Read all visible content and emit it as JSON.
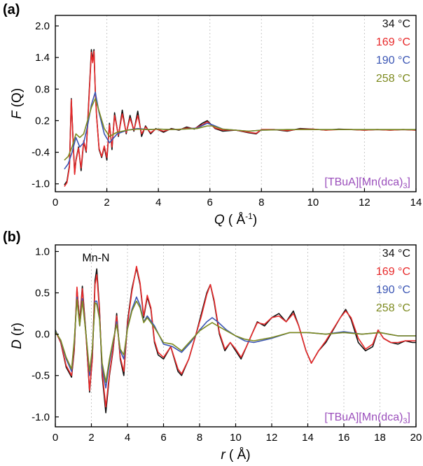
{
  "figure": {
    "colors": {
      "s34": "#111111",
      "s169": "#e8292a",
      "s190": "#3a55b4",
      "s258": "#7d8a1f",
      "compound": "#9b4fbc",
      "grid": "#c8c8c8"
    }
  },
  "chart_data": [
    {
      "type": "line",
      "panel_label": "(a)",
      "xlabel": "Q ( Å⁻¹)",
      "xlabel_parts": {
        "italic": "Q",
        "rest": " ( Å",
        "sup": "-1",
        "close": ")"
      },
      "ylabel": "F (Q)",
      "ylabel_parts": {
        "italic": "F",
        "rest": " (Q)"
      },
      "xlim": [
        0,
        14
      ],
      "ylim": [
        -1.15,
        2.2
      ],
      "xticks": [
        0,
        2,
        4,
        6,
        8,
        10,
        12,
        14
      ],
      "xtick_labels": [
        "0",
        "2",
        "4",
        "6",
        "8",
        "10",
        "12",
        "14"
      ],
      "yticks": [
        -1.0,
        -0.4,
        0.2,
        0.8,
        1.4,
        2.0
      ],
      "ytick_labels": [
        "-1.0",
        "-0.4",
        "0.2",
        "0.8",
        "1.4",
        "2.0"
      ],
      "grid": "vertical dashed",
      "legend_position": "top-right",
      "annotation": "[TBuA][Mn(dca)3]",
      "annotation_parts": {
        "main": "[TBuA][Mn(dca)",
        "sub": "3",
        "close": "]"
      },
      "series": [
        {
          "name": "34 °C",
          "x": [
            0.35,
            0.45,
            0.55,
            0.62,
            0.7,
            0.75,
            0.8,
            0.9,
            1.0,
            1.1,
            1.2,
            1.3,
            1.4,
            1.45,
            1.5,
            1.55,
            1.6,
            1.7,
            1.8,
            1.9,
            2.0,
            2.1,
            2.2,
            2.3,
            2.45,
            2.6,
            2.75,
            2.9,
            3.05,
            3.2,
            3.35,
            3.5,
            3.7,
            3.9,
            4.2,
            4.5,
            4.8,
            5.1,
            5.4,
            5.7,
            5.9,
            6.0,
            6.2,
            6.5,
            7.0,
            7.5,
            7.8,
            8.0,
            8.5,
            9.0,
            9.5,
            10.0,
            10.5,
            11.0,
            11.5,
            12.0,
            12.5,
            13.0,
            13.5,
            14.0
          ],
          "y": [
            -1.02,
            -0.95,
            -0.65,
            0.62,
            -0.3,
            -0.8,
            -0.55,
            -0.3,
            -0.75,
            -0.2,
            -0.4,
            0.6,
            1.55,
            1.35,
            1.55,
            0.8,
            0.3,
            -0.35,
            -0.5,
            -0.3,
            -0.55,
            0.15,
            -0.35,
            0.35,
            -0.1,
            0.4,
            -0.05,
            0.3,
            0.0,
            0.38,
            -0.1,
            0.1,
            -0.05,
            0.05,
            -0.02,
            0.05,
            0.02,
            0.08,
            0.04,
            0.15,
            0.2,
            0.15,
            0.05,
            0.0,
            0.02,
            -0.03,
            -0.05,
            0.03,
            0.03,
            0.0,
            0.05,
            0.04,
            0.02,
            0.04,
            0.03,
            0.02,
            0.03,
            0.02,
            0.03,
            0.02
          ]
        },
        {
          "name": "169 °C",
          "x": [
            0.35,
            0.45,
            0.55,
            0.62,
            0.7,
            0.75,
            0.8,
            0.9,
            1.0,
            1.1,
            1.2,
            1.3,
            1.4,
            1.45,
            1.5,
            1.55,
            1.6,
            1.7,
            1.8,
            1.9,
            2.0,
            2.1,
            2.2,
            2.3,
            2.45,
            2.6,
            2.75,
            2.9,
            3.05,
            3.2,
            3.35,
            3.5,
            3.7,
            3.9,
            4.2,
            4.5,
            4.8,
            5.1,
            5.4,
            5.7,
            5.9,
            6.0,
            6.2,
            6.5,
            7.0,
            7.5,
            7.8,
            8.0,
            8.5,
            9.0,
            9.5,
            10.0,
            10.5,
            11.0,
            11.5,
            12.0,
            12.5,
            13.0,
            13.5,
            14.0
          ],
          "y": [
            -1.05,
            -0.98,
            -0.68,
            0.6,
            -0.32,
            -0.82,
            -0.57,
            -0.32,
            -0.7,
            -0.18,
            -0.38,
            0.55,
            1.5,
            1.3,
            1.52,
            0.78,
            0.28,
            -0.33,
            -0.48,
            -0.28,
            -0.5,
            0.12,
            -0.3,
            0.3,
            -0.08,
            0.33,
            -0.03,
            0.25,
            0.02,
            0.3,
            -0.05,
            0.08,
            -0.03,
            0.04,
            0.0,
            0.04,
            0.03,
            0.06,
            0.05,
            0.12,
            0.18,
            0.14,
            0.06,
            0.02,
            0.02,
            -0.02,
            -0.04,
            0.03,
            0.03,
            0.01,
            0.04,
            0.04,
            0.02,
            0.03,
            0.03,
            0.02,
            0.03,
            0.02,
            0.03,
            0.02
          ]
        },
        {
          "name": "190 °C",
          "x": [
            0.35,
            0.5,
            0.65,
            0.8,
            0.95,
            1.1,
            1.25,
            1.4,
            1.55,
            1.7,
            1.9,
            2.1,
            2.4,
            2.8,
            3.2,
            3.6,
            4.0,
            4.5,
            5.0,
            5.5,
            5.9,
            6.1,
            6.5,
            7.0,
            7.5,
            8.0,
            9.0,
            10.0,
            11.0,
            12.0,
            13.0,
            14.0
          ],
          "y": [
            -0.72,
            -0.62,
            -0.4,
            -0.12,
            -0.3,
            -0.22,
            0.1,
            0.5,
            0.74,
            0.35,
            -0.05,
            -0.22,
            -0.05,
            0.02,
            0.05,
            0.03,
            0.04,
            0.03,
            0.04,
            0.06,
            0.15,
            0.12,
            0.04,
            0.02,
            0.0,
            0.02,
            0.03,
            0.03,
            0.03,
            0.03,
            0.03,
            0.03
          ]
        },
        {
          "name": "258 °C",
          "x": [
            0.35,
            0.5,
            0.65,
            0.8,
            0.95,
            1.1,
            1.25,
            1.4,
            1.55,
            1.7,
            1.9,
            2.1,
            2.4,
            2.8,
            3.2,
            3.6,
            4.0,
            4.5,
            5.0,
            5.5,
            5.9,
            6.1,
            6.5,
            7.0,
            7.5,
            8.0,
            9.0,
            10.0,
            11.0,
            12.0,
            13.0,
            14.0
          ],
          "y": [
            -0.55,
            -0.48,
            -0.3,
            -0.05,
            -0.12,
            -0.05,
            0.2,
            0.45,
            0.62,
            0.38,
            0.05,
            -0.1,
            -0.02,
            0.02,
            0.04,
            0.03,
            0.04,
            0.03,
            0.04,
            0.05,
            0.1,
            0.1,
            0.04,
            0.02,
            0.0,
            0.02,
            0.03,
            0.03,
            0.03,
            0.03,
            0.03,
            0.03
          ]
        }
      ]
    },
    {
      "type": "line",
      "panel_label": "(b)",
      "xlabel": "r ( Å)",
      "xlabel_parts": {
        "italic": "r",
        "rest": " ( Å)"
      },
      "ylabel": "D (r)",
      "ylabel_parts": {
        "italic": "D",
        "rest": " (r)"
      },
      "xlim": [
        0,
        20
      ],
      "ylim": [
        -1.12,
        1.08
      ],
      "xticks": [
        0,
        2,
        4,
        6,
        8,
        10,
        12,
        14,
        16,
        18,
        20
      ],
      "xtick_labels": [
        "0",
        "2",
        "4",
        "6",
        "8",
        "10",
        "12",
        "14",
        "16",
        "18",
        "20"
      ],
      "yticks": [
        -1.0,
        -0.5,
        0.0,
        0.5,
        1.0
      ],
      "ytick_labels": [
        "-1.0",
        "-0.5",
        "0.0",
        "0.5",
        "1.0"
      ],
      "grid": "vertical dashed",
      "legend_position": "top-right",
      "annotation": "[TBuA][Mn(dca)3]",
      "annotation_parts": {
        "main": "[TBuA][Mn(dca)",
        "sub": "3",
        "close": "]"
      },
      "peak_label": {
        "text": "Mn-N",
        "x": 2.25,
        "y": 0.88
      },
      "series": [
        {
          "name": "34 °C",
          "x": [
            0.0,
            0.3,
            0.6,
            0.9,
            1.05,
            1.2,
            1.35,
            1.5,
            1.7,
            1.9,
            2.05,
            2.2,
            2.3,
            2.45,
            2.6,
            2.8,
            3.0,
            3.2,
            3.4,
            3.6,
            3.8,
            4.0,
            4.25,
            4.5,
            4.7,
            4.9,
            5.1,
            5.3,
            5.5,
            5.7,
            6.0,
            6.4,
            6.8,
            7.0,
            7.4,
            7.8,
            8.1,
            8.4,
            8.6,
            8.8,
            9.1,
            9.4,
            9.7,
            10.0,
            10.3,
            10.6,
            10.9,
            11.2,
            11.6,
            12.0,
            12.4,
            12.8,
            13.2,
            13.5,
            13.9,
            14.2,
            14.6,
            15.0,
            15.4,
            15.8,
            16.1,
            16.4,
            16.8,
            17.2,
            17.6,
            17.9,
            18.2,
            18.6,
            19.0,
            19.4,
            19.8,
            20.0
          ],
          "y": [
            0.05,
            -0.1,
            -0.4,
            -0.52,
            -0.2,
            0.55,
            0.15,
            0.58,
            0.0,
            -0.7,
            -0.3,
            0.65,
            0.79,
            0.3,
            -0.5,
            -0.95,
            -0.5,
            -0.2,
            0.25,
            -0.3,
            -0.5,
            0.15,
            0.55,
            0.8,
            0.6,
            0.2,
            0.45,
            0.3,
            -0.1,
            -0.25,
            -0.3,
            -0.15,
            -0.45,
            -0.5,
            -0.3,
            0.0,
            0.25,
            0.5,
            0.6,
            0.4,
            0.0,
            -0.2,
            -0.1,
            -0.2,
            -0.3,
            -0.15,
            0.0,
            0.15,
            0.1,
            0.2,
            0.25,
            0.15,
            0.28,
            0.1,
            -0.2,
            -0.35,
            -0.2,
            -0.1,
            0.05,
            0.2,
            0.3,
            0.18,
            -0.1,
            -0.2,
            -0.15,
            0.05,
            -0.05,
            -0.1,
            -0.12,
            -0.08,
            -0.1,
            -0.1
          ]
        },
        {
          "name": "169 °C",
          "x": [
            0.0,
            0.3,
            0.6,
            0.9,
            1.05,
            1.2,
            1.35,
            1.5,
            1.7,
            1.9,
            2.05,
            2.2,
            2.3,
            2.45,
            2.6,
            2.8,
            3.0,
            3.2,
            3.4,
            3.6,
            3.8,
            4.0,
            4.25,
            4.5,
            4.7,
            4.9,
            5.1,
            5.3,
            5.5,
            5.7,
            6.0,
            6.4,
            6.8,
            7.0,
            7.4,
            7.8,
            8.1,
            8.4,
            8.6,
            8.8,
            9.1,
            9.4,
            9.7,
            10.0,
            10.3,
            10.6,
            10.9,
            11.2,
            11.6,
            12.0,
            12.4,
            12.8,
            13.2,
            13.5,
            13.9,
            14.2,
            14.6,
            15.0,
            15.4,
            15.8,
            16.1,
            16.4,
            16.8,
            17.2,
            17.6,
            17.9,
            18.2,
            18.6,
            19.0,
            19.4,
            19.8,
            20.0
          ],
          "y": [
            0.04,
            -0.1,
            -0.38,
            -0.5,
            -0.18,
            0.57,
            0.12,
            0.55,
            -0.02,
            -0.68,
            -0.3,
            0.6,
            0.72,
            0.28,
            -0.45,
            -0.88,
            -0.48,
            -0.18,
            0.22,
            -0.28,
            -0.45,
            0.12,
            0.52,
            0.82,
            0.62,
            0.22,
            0.47,
            0.32,
            -0.08,
            -0.22,
            -0.28,
            -0.15,
            -0.42,
            -0.48,
            -0.3,
            0.0,
            0.22,
            0.48,
            0.6,
            0.42,
            0.02,
            -0.18,
            -0.1,
            -0.18,
            -0.28,
            -0.15,
            0.0,
            0.14,
            0.12,
            0.2,
            0.22,
            0.15,
            0.25,
            0.1,
            -0.2,
            -0.35,
            -0.2,
            -0.08,
            0.06,
            0.2,
            0.28,
            0.2,
            -0.05,
            -0.18,
            -0.12,
            0.05,
            -0.05,
            -0.1,
            -0.1,
            -0.08,
            -0.08,
            -0.08
          ]
        },
        {
          "name": "190 °C",
          "x": [
            0.0,
            0.3,
            0.6,
            0.9,
            1.05,
            1.2,
            1.35,
            1.5,
            1.7,
            1.9,
            2.05,
            2.2,
            2.3,
            2.45,
            2.6,
            2.8,
            3.0,
            3.2,
            3.4,
            3.6,
            3.8,
            4.0,
            4.25,
            4.5,
            4.7,
            4.9,
            5.1,
            5.5,
            6.0,
            6.5,
            7.0,
            7.5,
            8.0,
            8.4,
            8.7,
            9.0,
            9.5,
            10.0,
            10.5,
            11.0,
            12.0,
            13.0,
            14.0,
            15.0,
            16.0,
            17.0,
            18.0,
            19.0,
            20.0
          ],
          "y": [
            0.04,
            -0.08,
            -0.3,
            -0.45,
            -0.1,
            0.45,
            0.1,
            0.43,
            0.0,
            -0.5,
            -0.2,
            0.4,
            0.4,
            0.2,
            -0.4,
            -0.65,
            -0.35,
            -0.1,
            0.15,
            -0.2,
            -0.3,
            0.08,
            0.3,
            0.45,
            0.35,
            0.15,
            0.22,
            0.1,
            -0.12,
            -0.15,
            -0.22,
            -0.1,
            0.05,
            0.15,
            0.2,
            0.15,
            0.05,
            -0.02,
            -0.08,
            -0.1,
            -0.05,
            0.02,
            0.02,
            0.0,
            0.03,
            0.0,
            0.02,
            -0.02,
            -0.02
          ]
        },
        {
          "name": "258 °C",
          "x": [
            0.0,
            0.3,
            0.6,
            0.9,
            1.05,
            1.2,
            1.35,
            1.5,
            1.7,
            1.9,
            2.05,
            2.2,
            2.3,
            2.45,
            2.6,
            2.8,
            3.0,
            3.2,
            3.4,
            3.6,
            3.8,
            4.0,
            4.25,
            4.5,
            4.7,
            4.9,
            5.1,
            5.5,
            6.0,
            6.5,
            7.0,
            7.5,
            8.0,
            8.4,
            8.7,
            9.0,
            9.5,
            10.0,
            10.5,
            11.0,
            12.0,
            13.0,
            14.0,
            15.0,
            16.0,
            17.0,
            18.0,
            19.0,
            20.0
          ],
          "y": [
            0.03,
            -0.07,
            -0.28,
            -0.42,
            -0.08,
            0.42,
            0.1,
            0.4,
            0.0,
            -0.45,
            -0.18,
            0.38,
            0.36,
            0.18,
            -0.35,
            -0.58,
            -0.3,
            -0.08,
            0.12,
            -0.18,
            -0.25,
            0.06,
            0.28,
            0.4,
            0.32,
            0.14,
            0.2,
            0.08,
            -0.1,
            -0.12,
            -0.2,
            -0.08,
            0.04,
            0.1,
            0.14,
            0.1,
            0.04,
            -0.02,
            -0.06,
            -0.08,
            -0.04,
            0.02,
            0.02,
            0.0,
            0.02,
            0.0,
            0.02,
            -0.02,
            -0.02
          ]
        }
      ]
    }
  ]
}
